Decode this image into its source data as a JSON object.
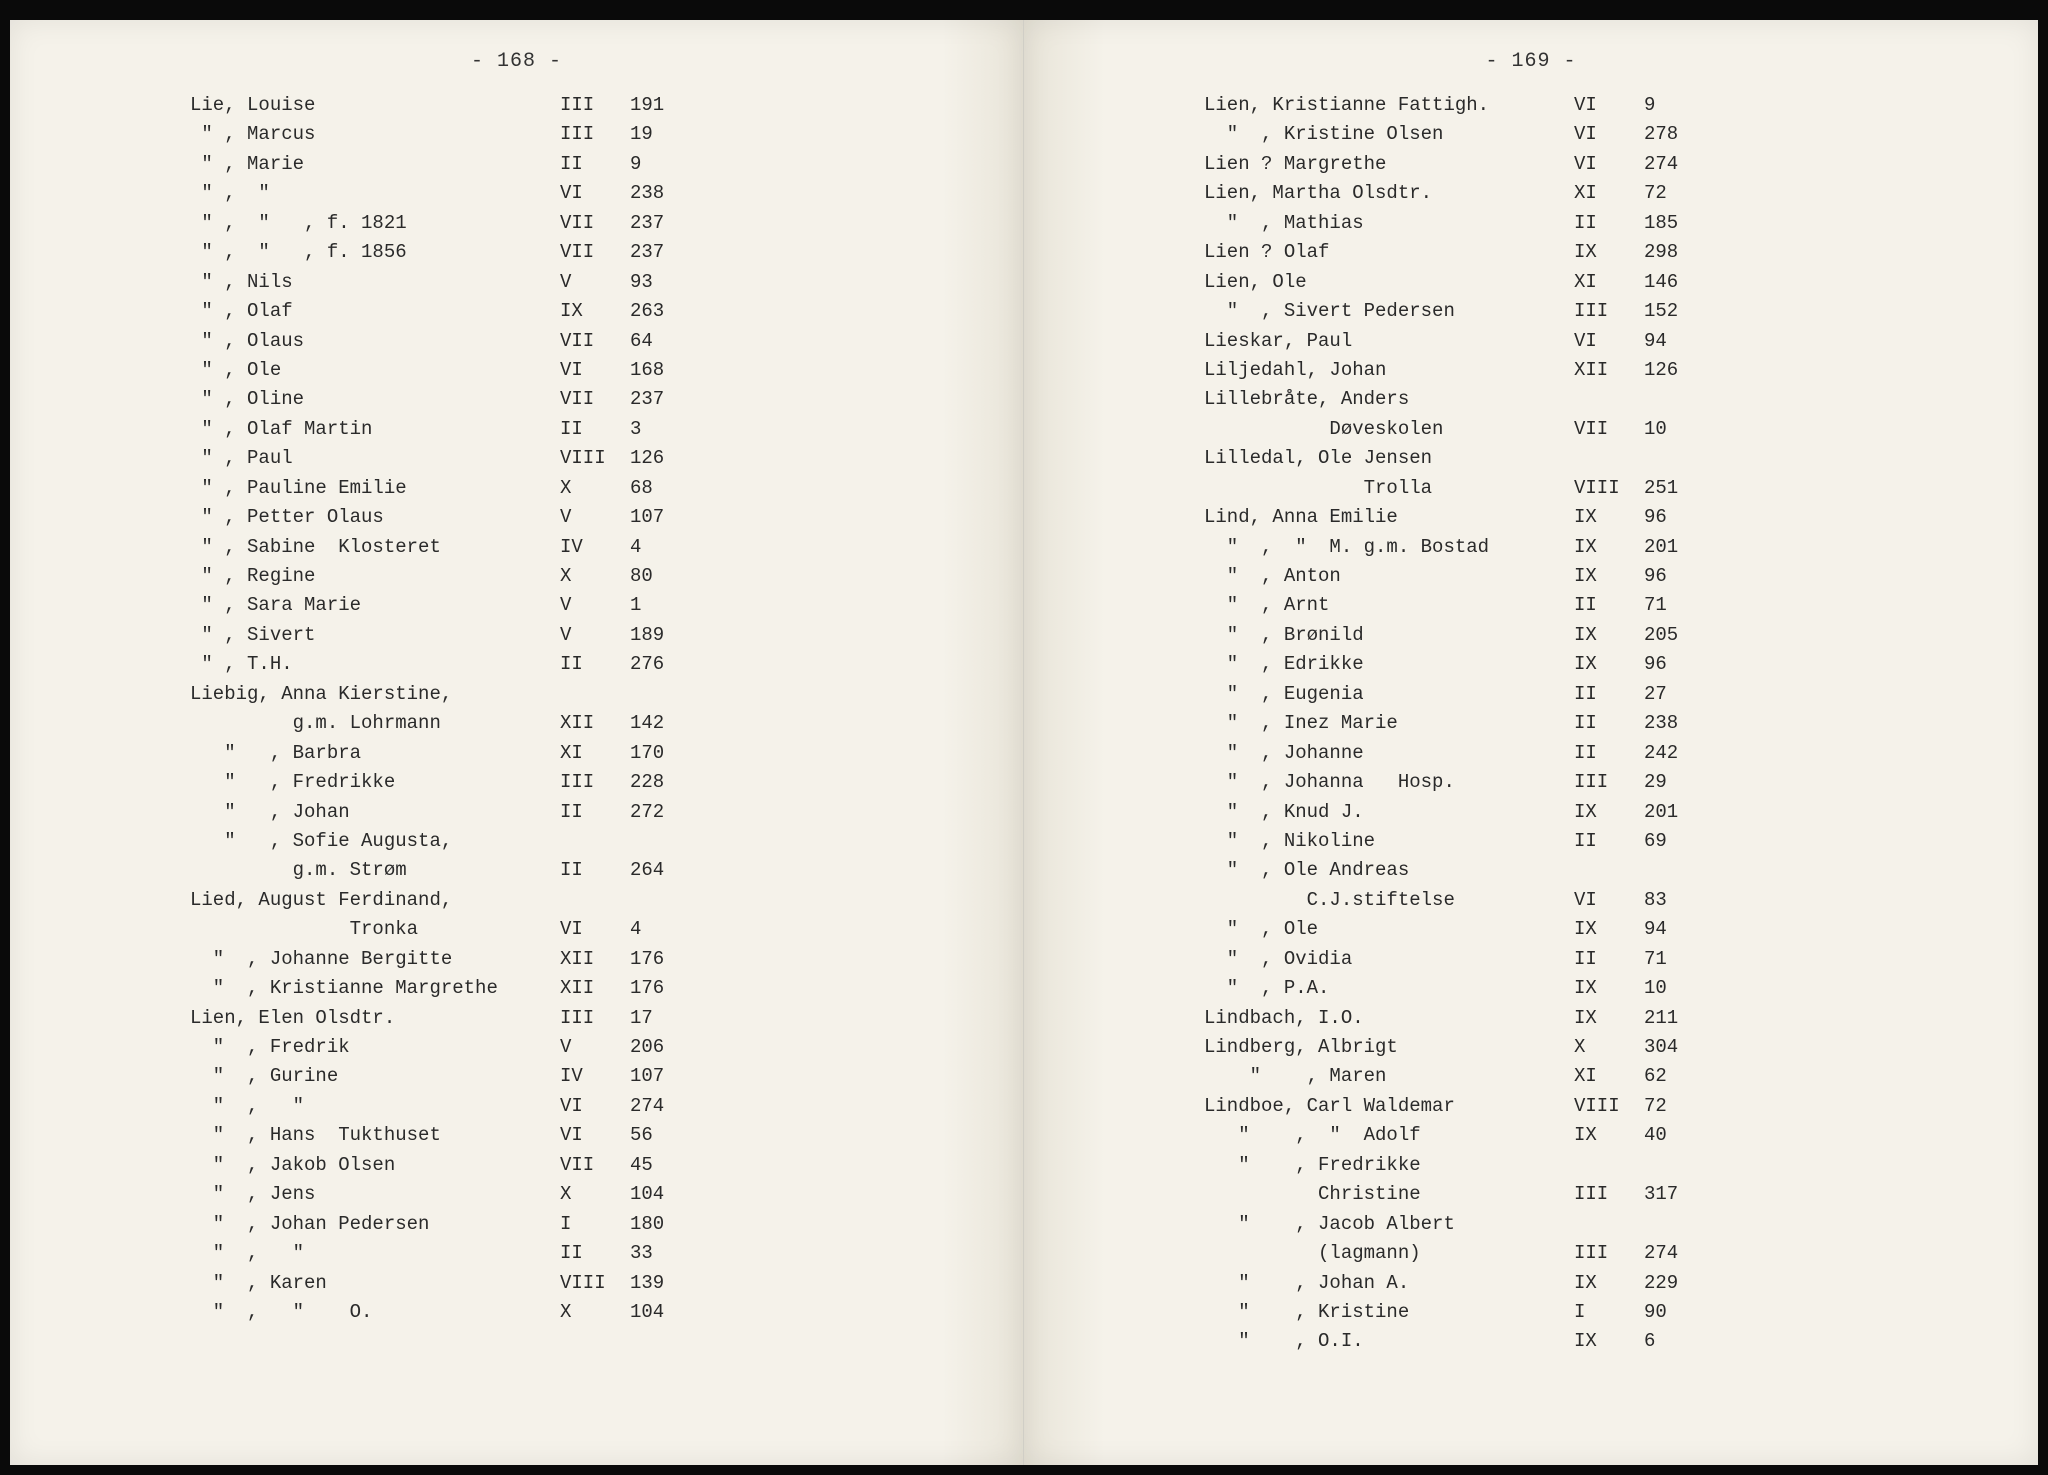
{
  "left": {
    "page_number": "- 168 -",
    "rows": [
      {
        "name": "Lie, Louise",
        "vol": "III",
        "pg": "191"
      },
      {
        "name": " \" , Marcus",
        "vol": "III",
        "pg": "19"
      },
      {
        "name": " \" , Marie",
        "vol": "II",
        "pg": "9"
      },
      {
        "name": " \" ,  \"",
        "vol": "VI",
        "pg": "238"
      },
      {
        "name": " \" ,  \"   , f. 1821",
        "vol": "VII",
        "pg": "237"
      },
      {
        "name": " \" ,  \"   , f. 1856",
        "vol": "VII",
        "pg": "237"
      },
      {
        "name": " \" , Nils",
        "vol": "V",
        "pg": "93"
      },
      {
        "name": " \" , Olaf",
        "vol": "IX",
        "pg": "263"
      },
      {
        "name": " \" , Olaus",
        "vol": "VII",
        "pg": "64"
      },
      {
        "name": " \" , Ole",
        "vol": "VI",
        "pg": "168"
      },
      {
        "name": " \" , Oline",
        "vol": "VII",
        "pg": "237"
      },
      {
        "name": " \" , Olaf Martin",
        "vol": "II",
        "pg": "3"
      },
      {
        "name": " \" , Paul",
        "vol": "VIII",
        "pg": "126"
      },
      {
        "name": " \" , Pauline Emilie",
        "vol": "X",
        "pg": "68"
      },
      {
        "name": " \" , Petter Olaus",
        "vol": "V",
        "pg": "107"
      },
      {
        "name": " \" , Sabine  Klosteret",
        "vol": "IV",
        "pg": "4"
      },
      {
        "name": " \" , Regine",
        "vol": "X",
        "pg": "80"
      },
      {
        "name": " \" , Sara Marie",
        "vol": "V",
        "pg": "1"
      },
      {
        "name": " \" , Sivert",
        "vol": "V",
        "pg": "189"
      },
      {
        "name": " \" , T.H.",
        "vol": "II",
        "pg": "276"
      },
      {
        "name": "Liebig, Anna Kierstine,",
        "vol": "",
        "pg": ""
      },
      {
        "name": "         g.m. Lohrmann",
        "vol": "XII",
        "pg": "142"
      },
      {
        "name": "   \"   , Barbra",
        "vol": "XI",
        "pg": "170"
      },
      {
        "name": "   \"   , Fredrikke",
        "vol": "III",
        "pg": "228"
      },
      {
        "name": "   \"   , Johan",
        "vol": "II",
        "pg": "272"
      },
      {
        "name": "   \"   , Sofie Augusta,",
        "vol": "",
        "pg": ""
      },
      {
        "name": "         g.m. Strøm",
        "vol": "II",
        "pg": "264"
      },
      {
        "name": "Lied, August Ferdinand,",
        "vol": "",
        "pg": ""
      },
      {
        "name": "              Tronka",
        "vol": "VI",
        "pg": "4"
      },
      {
        "name": "  \"  , Johanne Bergitte",
        "vol": "XII",
        "pg": "176"
      },
      {
        "name": "  \"  , Kristianne Margrethe",
        "vol": "XII",
        "pg": "176"
      },
      {
        "name": "Lien, Elen Olsdtr.",
        "vol": "III",
        "pg": "17"
      },
      {
        "name": "  \"  , Fredrik",
        "vol": "V",
        "pg": "206"
      },
      {
        "name": "  \"  , Gurine",
        "vol": "IV",
        "pg": "107"
      },
      {
        "name": "  \"  ,   \"",
        "vol": "VI",
        "pg": "274"
      },
      {
        "name": "  \"  , Hans  Tukthuset",
        "vol": "VI",
        "pg": "56"
      },
      {
        "name": "  \"  , Jakob Olsen",
        "vol": "VII",
        "pg": "45"
      },
      {
        "name": "  \"  , Jens",
        "vol": "X",
        "pg": "104"
      },
      {
        "name": "  \"  , Johan Pedersen",
        "vol": "I",
        "pg": "180"
      },
      {
        "name": "  \"  ,   \"",
        "vol": "II",
        "pg": "33"
      },
      {
        "name": "  \"  , Karen",
        "vol": "VIII",
        "pg": "139"
      },
      {
        "name": "  \"  ,   \"    O.",
        "vol": "X",
        "pg": "104"
      }
    ]
  },
  "right": {
    "page_number": "- 169 -",
    "rows": [
      {
        "name": "Lien, Kristianne Fattigh.",
        "vol": "VI",
        "pg": "9"
      },
      {
        "name": "  \"  , Kristine Olsen",
        "vol": "VI",
        "pg": "278"
      },
      {
        "name": "Lien ? Margrethe",
        "vol": "VI",
        "pg": "274"
      },
      {
        "name": "Lien, Martha Olsdtr.",
        "vol": "XI",
        "pg": "72"
      },
      {
        "name": "  \"  , Mathias",
        "vol": "II",
        "pg": "185"
      },
      {
        "name": "Lien ? Olaf",
        "vol": "IX",
        "pg": "298"
      },
      {
        "name": "Lien, Ole",
        "vol": "XI",
        "pg": "146"
      },
      {
        "name": "  \"  , Sivert Pedersen",
        "vol": "III",
        "pg": "152"
      },
      {
        "name": "Lieskar, Paul",
        "vol": "VI",
        "pg": "94"
      },
      {
        "name": "Liljedahl, Johan",
        "vol": "XII",
        "pg": "126"
      },
      {
        "name": "Lillebråte, Anders",
        "vol": "",
        "pg": ""
      },
      {
        "name": "           Døveskolen",
        "vol": "VII",
        "pg": "10"
      },
      {
        "name": "Lilledal, Ole Jensen",
        "vol": "",
        "pg": ""
      },
      {
        "name": "              Trolla",
        "vol": "VIII",
        "pg": "251"
      },
      {
        "name": "Lind, Anna Emilie",
        "vol": "IX",
        "pg": "96"
      },
      {
        "name": "  \"  ,  \"  M. g.m. Bostad",
        "vol": "IX",
        "pg": "201"
      },
      {
        "name": "  \"  , Anton",
        "vol": "IX",
        "pg": "96"
      },
      {
        "name": "  \"  , Arnt",
        "vol": "II",
        "pg": "71"
      },
      {
        "name": "  \"  , Brønild",
        "vol": "IX",
        "pg": "205"
      },
      {
        "name": "  \"  , Edrikke",
        "vol": "IX",
        "pg": "96"
      },
      {
        "name": "  \"  , Eugenia",
        "vol": "II",
        "pg": "27"
      },
      {
        "name": "  \"  , Inez Marie",
        "vol": "II",
        "pg": "238"
      },
      {
        "name": "  \"  , Johanne",
        "vol": "II",
        "pg": "242"
      },
      {
        "name": "  \"  , Johanna   Hosp.",
        "vol": "III",
        "pg": "29"
      },
      {
        "name": "  \"  , Knud J.",
        "vol": "IX",
        "pg": "201"
      },
      {
        "name": "  \"  , Nikoline",
        "vol": "II",
        "pg": "69"
      },
      {
        "name": "  \"  , Ole Andreas",
        "vol": "",
        "pg": ""
      },
      {
        "name": "         C.J.stiftelse",
        "vol": "VI",
        "pg": "83"
      },
      {
        "name": "  \"  , Ole",
        "vol": "IX",
        "pg": "94"
      },
      {
        "name": "  \"  , Ovidia",
        "vol": "II",
        "pg": "71"
      },
      {
        "name": "  \"  , P.A.",
        "vol": "IX",
        "pg": "10"
      },
      {
        "name": "Lindbach, I.O.",
        "vol": "IX",
        "pg": "211"
      },
      {
        "name": "Lindberg, Albrigt",
        "vol": "X",
        "pg": "304"
      },
      {
        "name": "    \"    , Maren",
        "vol": "XI",
        "pg": "62"
      },
      {
        "name": "Lindboe, Carl Waldemar",
        "vol": "VIII",
        "pg": "72"
      },
      {
        "name": "   \"    ,  \"  Adolf",
        "vol": "IX",
        "pg": "40"
      },
      {
        "name": "   \"    , Fredrikke",
        "vol": "",
        "pg": ""
      },
      {
        "name": "          Christine",
        "vol": "III",
        "pg": "317"
      },
      {
        "name": "   \"    , Jacob Albert",
        "vol": "",
        "pg": ""
      },
      {
        "name": "          (lagmann)",
        "vol": "III",
        "pg": "274"
      },
      {
        "name": "   \"    , Johan A.",
        "vol": "IX",
        "pg": "229"
      },
      {
        "name": "   \"    , Kristine",
        "vol": "I",
        "pg": "90"
      },
      {
        "name": "   \"    , O.I.",
        "vol": "IX",
        "pg": "6"
      }
    ]
  }
}
